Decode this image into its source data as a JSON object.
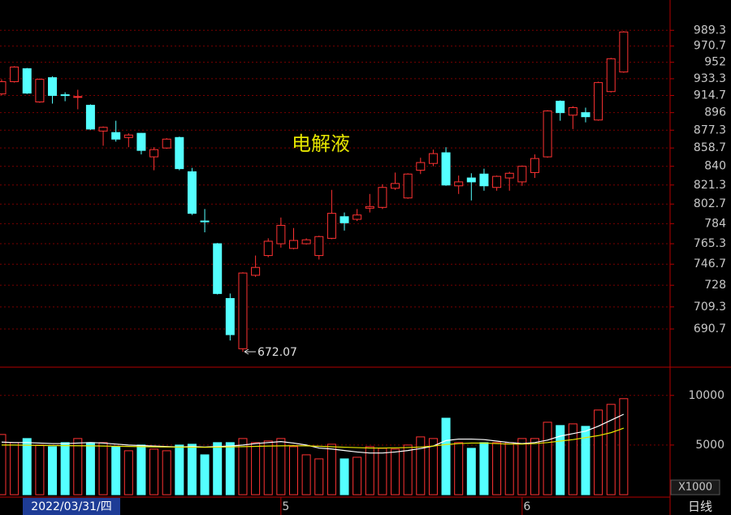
{
  "chart_data": [
    {
      "type": "candlestick",
      "title": "电解液",
      "categories": [
        null,
        null,
        null,
        null,
        null,
        null,
        null,
        null,
        null,
        null,
        null,
        null,
        null,
        null,
        null,
        null,
        null,
        null,
        null,
        null,
        null,
        null,
        "5",
        null,
        null,
        null,
        null,
        null,
        null,
        null,
        null,
        null,
        null,
        null,
        null,
        null,
        null,
        null,
        null,
        null,
        null,
        "6",
        null,
        null,
        null,
        null,
        null,
        null,
        null,
        null
      ],
      "open": [
        916.4,
        930,
        944.6,
        907.6,
        934.5,
        915.5,
        913,
        904,
        876.4,
        874.8,
        869.6,
        874,
        849.6,
        858.7,
        869.6,
        834.5,
        786.5,
        765.3,
        716.5,
        674.5,
        736.8,
        754.5,
        765.3,
        761,
        765.3,
        754.5,
        770.3,
        790.6,
        788.1,
        798.7,
        799.5,
        818.1,
        808.6,
        836,
        842.9,
        853.8,
        820.5,
        828.3,
        832.2,
        818.9,
        828.3,
        824.4,
        833.7,
        849.6,
        908.4,
        893.3,
        896,
        888.1,
        919,
        940.9
      ],
      "high": [
        932.6,
        947.5,
        945.5,
        933.5,
        936,
        918.2,
        921,
        905,
        881.2,
        887.3,
        874,
        874.5,
        859.5,
        869,
        870.5,
        838.4,
        797.9,
        766,
        720.8,
        739.5,
        754.5,
        770.3,
        789.8,
        779.9,
        770.3,
        772.7,
        816.5,
        794.6,
        797.9,
        812.5,
        822,
        833.7,
        833,
        848.7,
        857,
        859.5,
        830.7,
        833,
        837.6,
        830.7,
        834.5,
        840.8,
        852.1,
        898.7,
        909.3,
        903,
        901.4,
        930,
        957,
        988.3
      ],
      "low": [
        914.7,
        929,
        916.4,
        906.7,
        905.8,
        908.4,
        899.6,
        877.6,
        861,
        865.3,
        859.5,
        852.1,
        836,
        857.8,
        836,
        792.2,
        775.9,
        720,
        681.2,
        672.07,
        735.4,
        753,
        761.7,
        760.2,
        764.5,
        750.9,
        769.5,
        777.5,
        786.5,
        794.6,
        797.9,
        816.5,
        807.8,
        832.2,
        840,
        820.5,
        812.5,
        806.2,
        815.7,
        815.7,
        815.7,
        820.5,
        828.3,
        848.7,
        887.3,
        878.5,
        885.6,
        887.3,
        918,
        940
      ],
      "close": [
        930,
        946.5,
        917.3,
        932.6,
        914.7,
        914.7,
        913.5,
        878.5,
        880.3,
        867.9,
        872.2,
        856.2,
        857,
        867.9,
        837.6,
        793.8,
        786,
        720.8,
        686,
        738.8,
        743.8,
        767.6,
        782.4,
        768.3,
        768.9,
        771.9,
        793.8,
        784.8,
        792.2,
        800.3,
        818.9,
        822.8,
        832.2,
        843.8,
        852.9,
        821.3,
        824.4,
        824.4,
        820.5,
        829.9,
        833,
        840,
        847.9,
        897.8,
        896,
        901.4,
        891.6,
        929,
        956,
        987.3
      ],
      "up_color": "#ff3232",
      "down_color": "#54ffff",
      "ylim": [
        661,
        1026
      ],
      "log_scale": true,
      "grid": true,
      "yticks": [
        989.3,
        970.7,
        952.0,
        933.3,
        914.7,
        896.0,
        877.3,
        858.7,
        840.0,
        821.3,
        802.7,
        784.0,
        765.3,
        746.7,
        728.0,
        709.3,
        690.7
      ],
      "low_annotation": 672.07,
      "low_index": 19,
      "cursor_label": "2022/03/31/四",
      "period_label": "日线"
    },
    {
      "type": "volume",
      "values": [
        6066,
        5246,
        5656,
        5000,
        4836,
        5246,
        5656,
        5246,
        5246,
        4836,
        4426,
        5000,
        4590,
        4426,
        5000,
        5082,
        4016,
        5246,
        5246,
        5656,
        5246,
        5410,
        5656,
        4836,
        4016,
        3607,
        5082,
        3607,
        3770,
        4836,
        4672,
        4590,
        5000,
        5820,
        5656,
        7705,
        5246,
        4672,
        5246,
        5246,
        5246,
        5656,
        5656,
        7295,
        6967,
        7131,
        6885,
        8525,
        9098,
        9672
      ],
      "lines": [
        {
          "color": "#ffffff",
          "values": [
            5300,
            5250,
            5250,
            5200,
            5150,
            5150,
            5200,
            5250,
            5200,
            5100,
            5000,
            4950,
            4900,
            4850,
            4800,
            4850,
            4800,
            4850,
            4900,
            5000,
            5150,
            5250,
            5350,
            5200,
            5000,
            4700,
            4600,
            4450,
            4300,
            4200,
            4200,
            4300,
            4450,
            4650,
            4900,
            5450,
            5600,
            5600,
            5550,
            5400,
            5250,
            5150,
            5250,
            5500,
            5900,
            6150,
            6400,
            6900,
            7500,
            8100
          ]
        },
        {
          "color": "#e6e600",
          "values": [
            5000,
            5000,
            4980,
            4960,
            4950,
            4940,
            4930,
            4920,
            4900,
            4880,
            4860,
            4840,
            4820,
            4800,
            4790,
            4780,
            4770,
            4790,
            4810,
            4840,
            4870,
            4900,
            4920,
            4930,
            4920,
            4880,
            4830,
            4780,
            4740,
            4700,
            4700,
            4720,
            4750,
            4800,
            4900,
            5050,
            5150,
            5200,
            5200,
            5150,
            5100,
            5100,
            5150,
            5250,
            5400,
            5550,
            5750,
            5950,
            6250,
            6700
          ]
        }
      ],
      "ylim": [
        0,
        12600
      ],
      "yticks": [
        5000,
        10000
      ],
      "unit_label": "X1000"
    }
  ]
}
